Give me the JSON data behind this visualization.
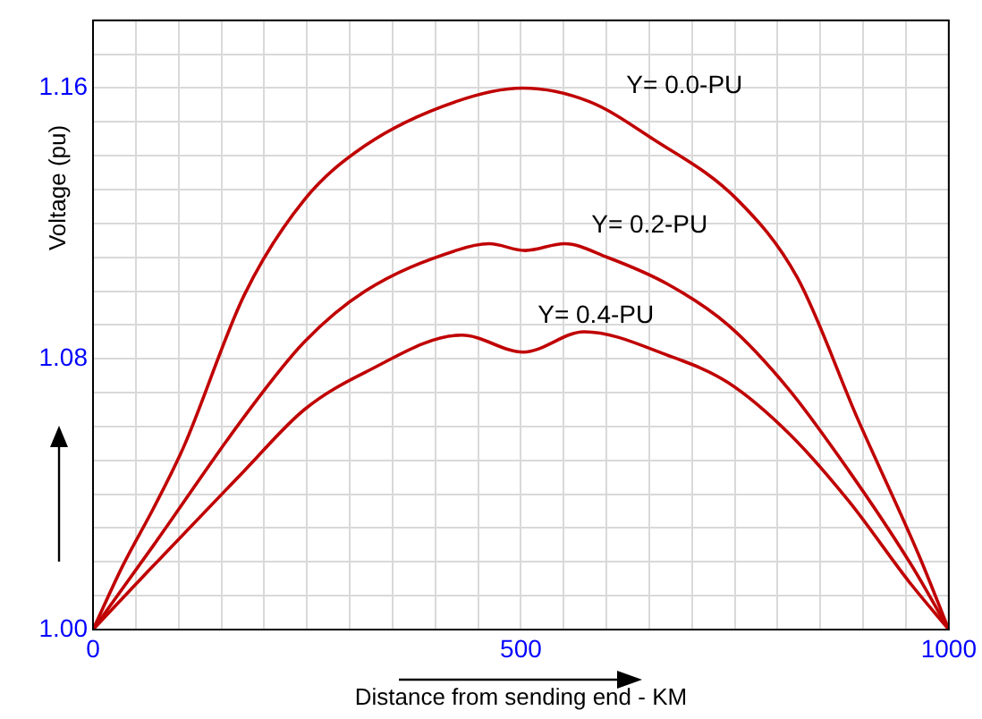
{
  "chart_data": {
    "type": "line",
    "xlabel": "Distance from sending end - KM",
    "ylabel": "Voltage (pu)",
    "xlim": [
      0,
      1000
    ],
    "ylim": [
      1.0,
      1.18
    ],
    "xticks": [
      0,
      {
        "value": 50,
        "label": null
      },
      {
        "value": 100,
        "label": null
      },
      {
        "value": 150,
        "label": null
      },
      {
        "value": 200,
        "label": null
      },
      {
        "value": 250,
        "label": null
      },
      {
        "value": 300,
        "label": null
      },
      {
        "value": 350,
        "label": null
      },
      {
        "value": 400,
        "label": null
      },
      {
        "value": 450,
        "label": null
      },
      500,
      {
        "value": 550,
        "label": null
      },
      {
        "value": 600,
        "label": null
      },
      {
        "value": 650,
        "label": null
      },
      {
        "value": 700,
        "label": null
      },
      {
        "value": 750,
        "label": null
      },
      {
        "value": 800,
        "label": null
      },
      {
        "value": 850,
        "label": null
      },
      {
        "value": 900,
        "label": null
      },
      {
        "value": 950,
        "label": null
      },
      1000
    ],
    "yticks": [
      {
        "value": 1.0,
        "label": "1.00"
      },
      {
        "value": 1.01,
        "label": null
      },
      {
        "value": 1.02,
        "label": null
      },
      {
        "value": 1.03,
        "label": null
      },
      {
        "value": 1.04,
        "label": null
      },
      {
        "value": 1.05,
        "label": null
      },
      {
        "value": 1.06,
        "label": null
      },
      {
        "value": 1.07,
        "label": null
      },
      {
        "value": 1.08,
        "label": "1.08"
      },
      {
        "value": 1.09,
        "label": null
      },
      {
        "value": 1.1,
        "label": null
      },
      {
        "value": 1.11,
        "label": null
      },
      {
        "value": 1.12,
        "label": null
      },
      {
        "value": 1.13,
        "label": null
      },
      {
        "value": 1.14,
        "label": null
      },
      {
        "value": 1.15,
        "label": null
      },
      {
        "value": 1.16,
        "label": "1.16"
      },
      {
        "value": 1.17,
        "label": null
      }
    ],
    "grid": true,
    "legend": false,
    "marker": "none",
    "line_style": "solid",
    "series": [
      {
        "name": "Y= 0.0-PU",
        "color": "#c00000",
        "x": [
          0,
          35,
          71,
          106,
          177,
          247,
          318,
          424,
          502,
          580,
          654,
          753,
          823,
          894,
          965,
          1000
        ],
        "values": [
          1.0,
          1.019,
          1.036,
          1.054,
          1.099,
          1.127,
          1.143,
          1.156,
          1.16,
          1.156,
          1.145,
          1.127,
          1.104,
          1.062,
          1.022,
          1.0
        ]
      },
      {
        "name": "Y= 0.2-PU",
        "color": "#c00000",
        "x": [
          0,
          71,
          177,
          247,
          318,
          424,
          463,
          505,
          551,
          601,
          672,
          742,
          813,
          883,
          954,
          1000
        ],
        "values": [
          1.0,
          1.025,
          1.063,
          1.085,
          1.1,
          1.112,
          1.114,
          1.112,
          1.114,
          1.11,
          1.102,
          1.09,
          1.071,
          1.047,
          1.02,
          1.0
        ]
      },
      {
        "name": "Y= 0.4-PU",
        "color": "#c00000",
        "x": [
          0,
          71,
          177,
          247,
          318,
          431,
          503,
          574,
          672,
          742,
          813,
          883,
          954,
          1000
        ],
        "values": [
          1.0,
          1.019,
          1.047,
          1.065,
          1.076,
          1.087,
          1.082,
          1.088,
          1.081,
          1.073,
          1.058,
          1.038,
          1.014,
          1.0
        ]
      }
    ]
  }
}
